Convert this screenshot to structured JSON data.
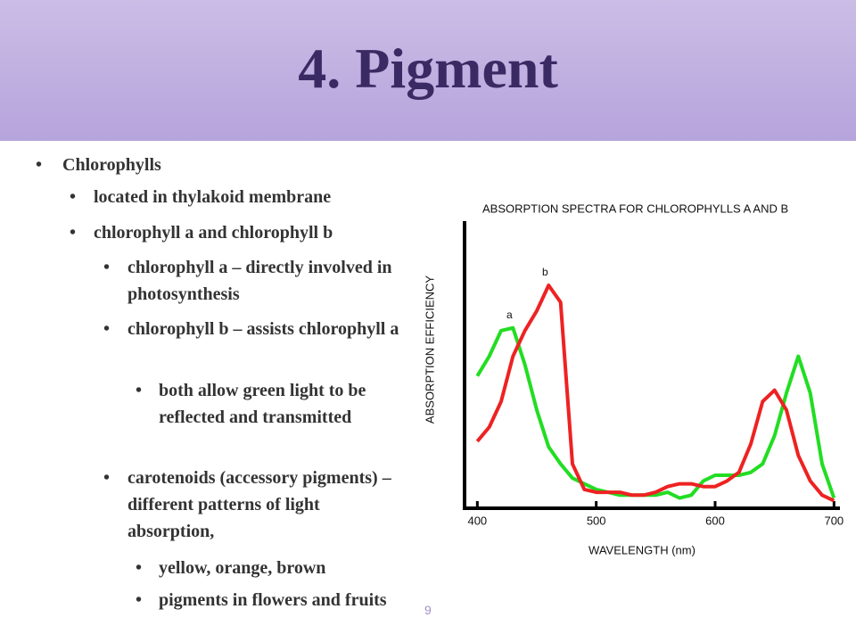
{
  "header": {
    "title": "4. Pigment"
  },
  "bullets": [
    {
      "level": 1,
      "text": "Chlorophylls"
    },
    {
      "level": 2,
      "text": "located in thylakoid membrane"
    },
    {
      "level": 2,
      "text": "chlorophyll a and chlorophyll b"
    },
    {
      "level": 3,
      "text": "chlorophyll a – directly involved in photosynthesis"
    },
    {
      "level": 3,
      "text": "chlorophyll b – assists chlorophyll a"
    },
    {
      "level": 4,
      "text": "both allow green light to be reflected and transmitted"
    },
    {
      "level": 3,
      "text": "carotenoids (accessory pigments) – different patterns of light absorption,"
    },
    {
      "level": 4,
      "text": "yellow, orange, brown"
    },
    {
      "level": 4,
      "text": "pigments in flowers and fruits"
    }
  ],
  "page_number": "9",
  "chart_data": {
    "type": "line",
    "title": "ABSORPTION SPECTRA FOR CHLOROPHYLLS A AND B",
    "x_label": "WAVELENGTH (nm)",
    "y_label": "ABSORPTION EFFICIENCY",
    "x": [
      400,
      410,
      420,
      430,
      440,
      450,
      460,
      470,
      480,
      490,
      500,
      510,
      520,
      530,
      540,
      550,
      560,
      570,
      580,
      590,
      600,
      610,
      620,
      630,
      640,
      650,
      660,
      670,
      680,
      690,
      700
    ],
    "series": [
      {
        "name": "a",
        "color": "#22dd22",
        "values": [
          46,
          53,
          62,
          63,
          50,
          34,
          21,
          15,
          10,
          8,
          6,
          5,
          4,
          4,
          4,
          4,
          5,
          3,
          4,
          9,
          11,
          11,
          11,
          12,
          15,
          25,
          40,
          53,
          40,
          15,
          3
        ]
      },
      {
        "name": "b",
        "color": "#ee2222",
        "values": [
          23,
          28,
          37,
          53,
          62,
          69,
          78,
          72,
          15,
          6,
          5,
          5,
          5,
          4,
          4,
          5,
          7,
          8,
          8,
          7,
          7,
          9,
          12,
          22,
          37,
          41,
          34,
          18,
          9,
          4,
          2
        ]
      }
    ],
    "xlim": [
      390,
      705
    ],
    "ylim": [
      0,
      100
    ],
    "xticks": [
      400,
      500,
      600,
      700
    ]
  }
}
